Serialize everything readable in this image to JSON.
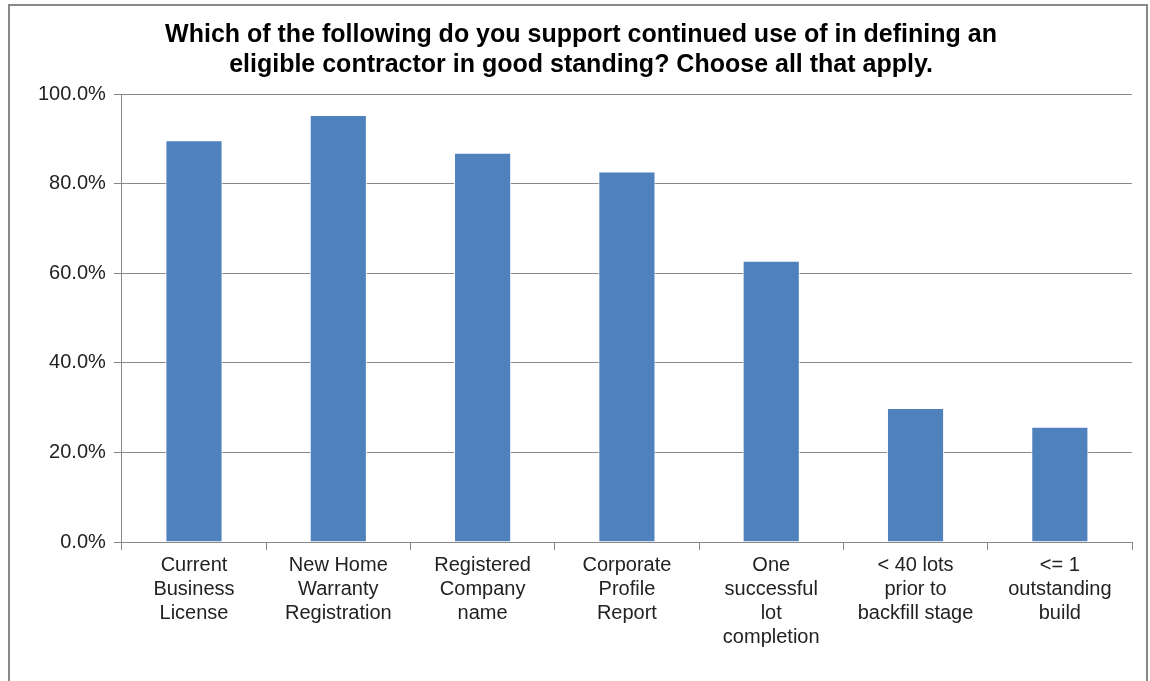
{
  "chart_data": {
    "type": "bar",
    "title": "Which of the following do you support continued use of in defining an eligible contractor in good standing? Choose all that apply.",
    "categories": [
      "Current Business License",
      "New Home Warranty Registration",
      "Registered Company name",
      "Corporate Profile Report",
      "One successful lot completion",
      "< 40 lots prior to backfill stage",
      "<= 1 outstanding build"
    ],
    "values": [
      89.7,
      95.3,
      86.9,
      82.7,
      62.8,
      29.9,
      25.7
    ],
    "color": "#4f81bd",
    "ylim": [
      0,
      100
    ],
    "yticks": [
      {
        "value": 0,
        "label": "0.0%"
      },
      {
        "value": 20,
        "label": "20.0%"
      },
      {
        "value": 40,
        "label": "40.0%"
      },
      {
        "value": 60,
        "label": "60.0%"
      },
      {
        "value": 80,
        "label": "80.0%"
      },
      {
        "value": 100,
        "label": "100.0%"
      }
    ],
    "grid": "y",
    "legend": false
  }
}
